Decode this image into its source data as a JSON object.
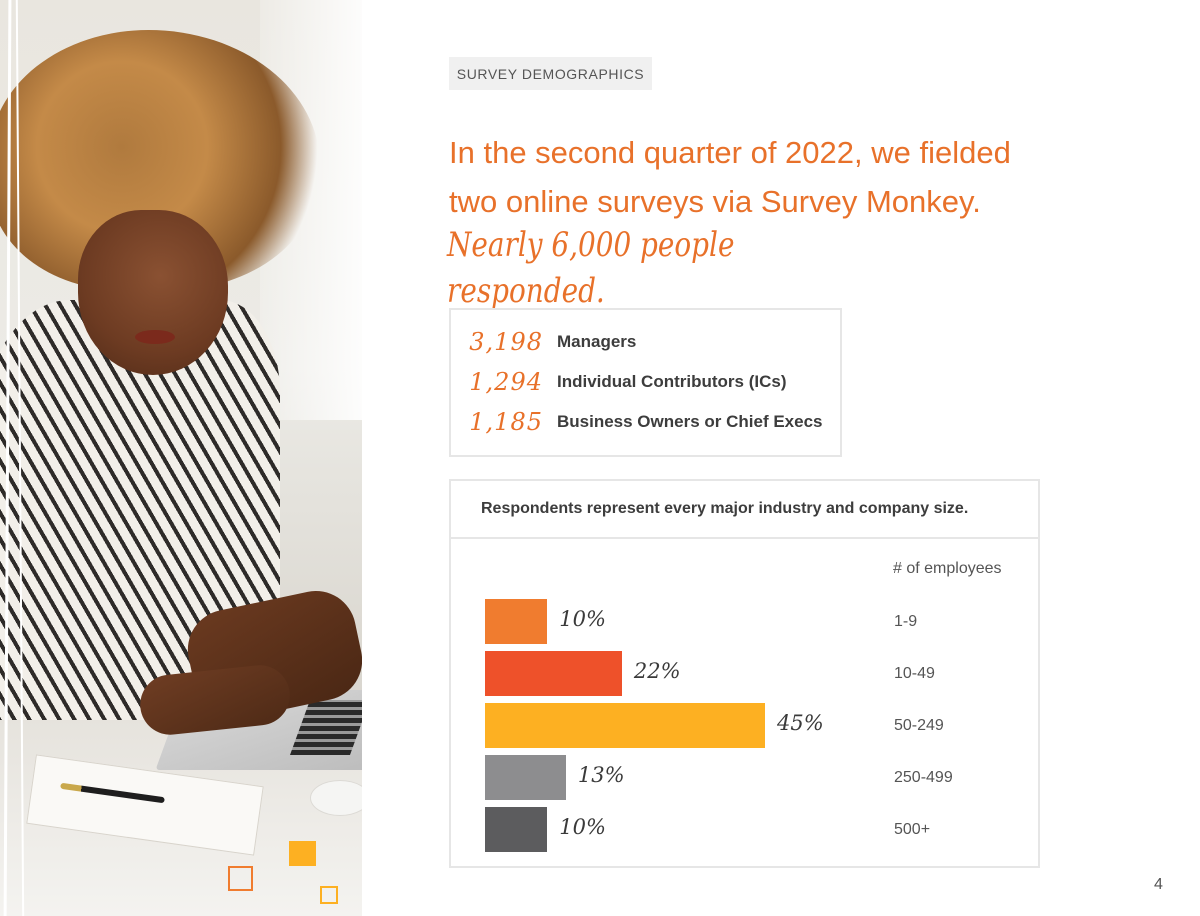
{
  "tag": "SURVEY DEMOGRAPHICS",
  "headline": {
    "line1": "In the second quarter of 2022, we fielded",
    "line2": "two online surveys via Survey Monkey.",
    "script": "Nearly 6,000 people responded."
  },
  "respondents": [
    {
      "count": "3,198",
      "label": "Managers"
    },
    {
      "count": "1,294",
      "label": "Individual Contributors (ICs)"
    },
    {
      "count": "1,185",
      "label": "Business Owners or Chief Execs"
    }
  ],
  "industry": {
    "title": "Respondents represent every major industry and company size."
  },
  "chart_data": {
    "type": "bar",
    "orientation": "horizontal",
    "title": "",
    "ylabel": "# of employees",
    "categories": [
      "1-9",
      "10-49",
      "50-249",
      "250-499",
      "500+"
    ],
    "values": [
      10,
      22,
      45,
      13,
      10
    ],
    "value_labels": [
      "10%",
      "22%",
      "45%",
      "13%",
      "10%"
    ],
    "colors": [
      "#f07c2f",
      "#ee512a",
      "#fdb022",
      "#8d8d8f",
      "#5c5c5e"
    ],
    "xlim": [
      0,
      50
    ],
    "grid": false
  },
  "page_number": "4"
}
